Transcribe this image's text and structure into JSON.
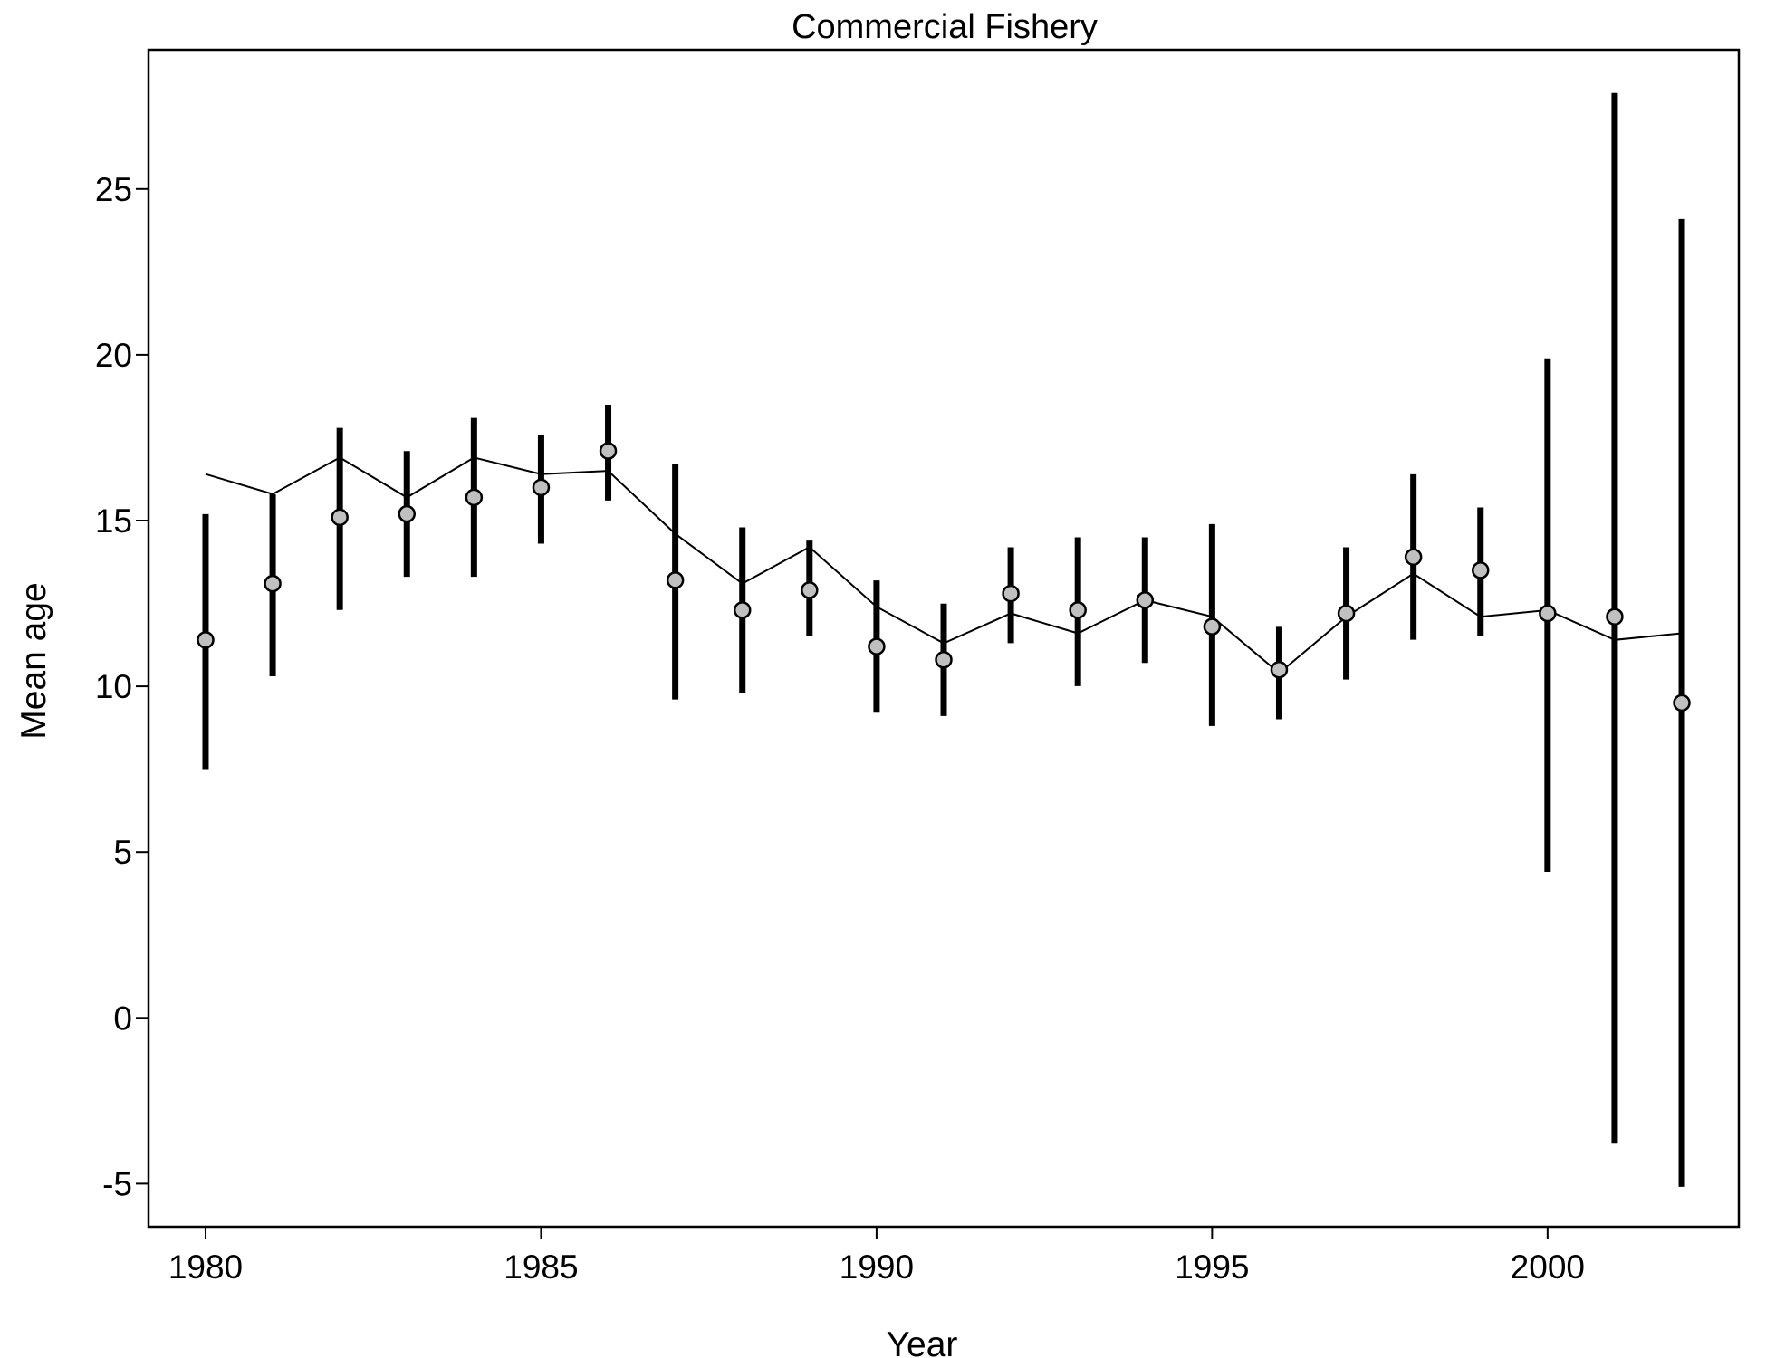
{
  "chart_data": {
    "type": "line",
    "title": "Commercial Fishery",
    "xlabel": "Year",
    "ylabel": "Mean age",
    "xlim": [
      1979.15,
      2002.85
    ],
    "ylim": [
      -6.3,
      29.2
    ],
    "xticks": [
      1980,
      1985,
      1990,
      1995,
      2000
    ],
    "yticks": [
      -5,
      0,
      5,
      10,
      15,
      20,
      25
    ],
    "grid": false,
    "legend": "none",
    "colors": {
      "errorbar": "#000000",
      "line": "#000000",
      "marker_fill": "#c0c0c0",
      "marker_edge": "#000000"
    },
    "series": [
      {
        "kind": "observed_with_error",
        "x": [
          1980,
          1981,
          1982,
          1983,
          1984,
          1985,
          1986,
          1987,
          1988,
          1989,
          1990,
          1991,
          1992,
          1993,
          1994,
          1995,
          1996,
          1997,
          1998,
          1999,
          2000,
          2001,
          2002
        ],
        "y": [
          11.4,
          13.1,
          15.1,
          15.2,
          15.7,
          16.0,
          17.1,
          13.2,
          12.3,
          12.9,
          11.2,
          10.8,
          12.8,
          12.3,
          12.6,
          11.8,
          10.5,
          12.2,
          13.9,
          13.5,
          12.2,
          12.1,
          9.5
        ],
        "lower": [
          7.6,
          10.4,
          12.4,
          13.4,
          13.4,
          14.4,
          15.7,
          9.7,
          9.9,
          11.6,
          9.3,
          9.2,
          11.4,
          10.1,
          10.8,
          8.9,
          9.1,
          10.3,
          11.5,
          11.6,
          4.5,
          -3.7,
          -5.0
        ],
        "upper": [
          15.1,
          15.7,
          17.7,
          17.0,
          18.0,
          17.5,
          18.4,
          16.6,
          14.7,
          14.3,
          13.1,
          12.4,
          14.1,
          14.4,
          14.4,
          14.8,
          11.7,
          14.1,
          16.3,
          15.3,
          19.8,
          27.8,
          24.0
        ]
      },
      {
        "kind": "expected_line",
        "x": [
          1980,
          1981,
          1982,
          1983,
          1984,
          1985,
          1986,
          1987,
          1988,
          1989,
          1990,
          1991,
          1992,
          1993,
          1994,
          1995,
          1996,
          1997,
          1998,
          1999,
          2000,
          2001,
          2002
        ],
        "y": [
          16.4,
          15.8,
          16.9,
          15.7,
          16.9,
          16.4,
          16.5,
          14.6,
          13.1,
          14.2,
          12.4,
          11.3,
          12.2,
          11.6,
          12.6,
          12.1,
          10.4,
          12.1,
          13.4,
          12.1,
          12.3,
          11.4,
          11.6
        ]
      }
    ]
  }
}
